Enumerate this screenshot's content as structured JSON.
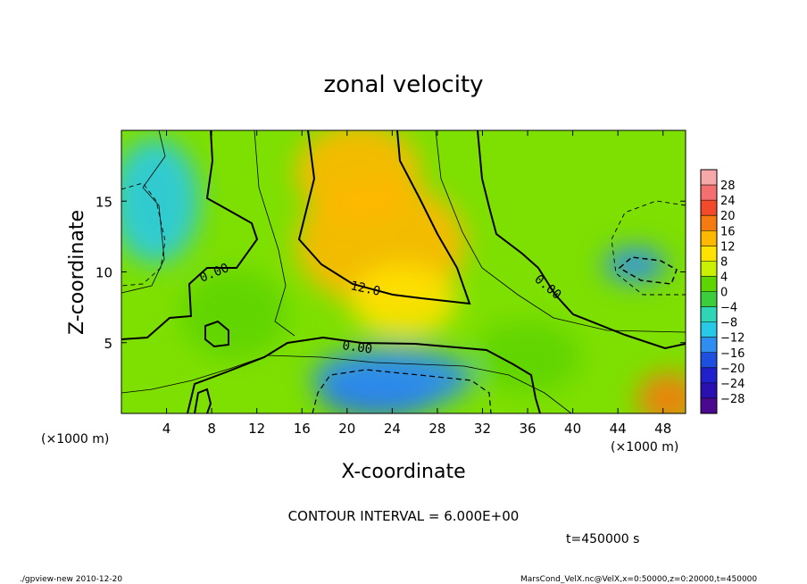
{
  "chart_data": {
    "type": "heatmap",
    "title": "zonal velocity",
    "xlabel": "X-coordinate",
    "ylabel": "Z-coordinate",
    "x_unit": "(×1000 m)",
    "y_unit": "(×1000 m)",
    "x_ticks": [
      4,
      8,
      12,
      16,
      20,
      24,
      28,
      32,
      36,
      40,
      44,
      48
    ],
    "y_ticks": [
      5,
      10,
      15
    ],
    "xlim": [
      0,
      50
    ],
    "ylim": [
      0,
      20
    ],
    "colorbar": {
      "labels": [
        "28",
        "24",
        "20",
        "16",
        "12",
        "8",
        "4",
        "0",
        "−4",
        "−8",
        "−12",
        "−16",
        "−20",
        "−24",
        "−28"
      ],
      "colors": [
        "#f7a8a8",
        "#f47070",
        "#f24b2c",
        "#f57a10",
        "#ffb800",
        "#ffe200",
        "#c8f000",
        "#5ed400",
        "#3ccd3c",
        "#2ed6b6",
        "#28c9e6",
        "#2f8ef0",
        "#1e50e0",
        "#2020cc",
        "#2a10b0",
        "#4a0a90"
      ]
    },
    "contour_labels": [
      "0.00",
      "12.0",
      "0.00",
      "0.00"
    ],
    "fields": [
      {
        "x": 23,
        "y": 12,
        "value": 16
      },
      {
        "x": 21,
        "y": 17,
        "value": 13
      },
      {
        "x": 25,
        "y": 8,
        "value": 12
      },
      {
        "x": 23,
        "y": 1.5,
        "value": -16
      },
      {
        "x": 24,
        "y": 2.5,
        "value": -13
      },
      {
        "x": 45.5,
        "y": 10.5,
        "value": -13
      },
      {
        "x": 3,
        "y": 15,
        "value": -8
      },
      {
        "x": 48.5,
        "y": 1,
        "value": 18
      },
      {
        "x": 36,
        "y": 4,
        "value": 2
      },
      {
        "x": 10,
        "y": 7,
        "value": 3
      }
    ],
    "contour_interval": "CONTOUR INTERVAL = 6.000E+00",
    "time_label": "t=450000 s"
  },
  "footer": {
    "left": "./gpview-new  2010-12-20",
    "right": "MarsCond_VelX.nc@VelX,x=0:50000,z=0:20000,t=450000"
  }
}
